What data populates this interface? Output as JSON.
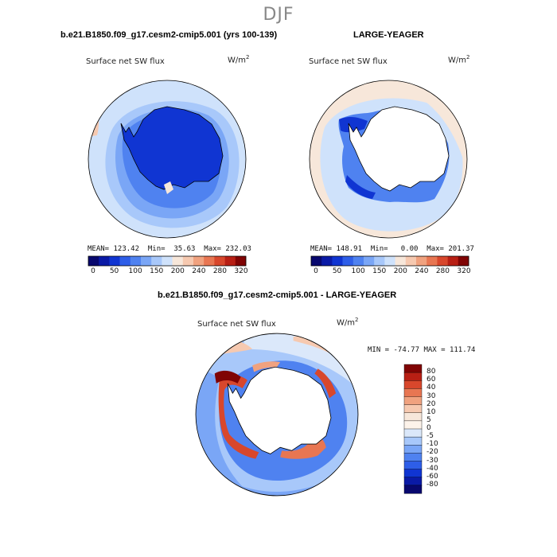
{
  "season": "DJF",
  "units_label": "W/m",
  "units_sup": "2",
  "chart_data": [
    {
      "type": "heatmap",
      "panel": "left",
      "title": "b.e21.B1850.f09_g17.cesm2-cmip5.001 (yrs 100-139)",
      "variable": "Surface net SW flux",
      "stats": "MEAN= 123.42  Min=  35.63  Max= 232.03",
      "mean": 123.42,
      "min": 35.63,
      "max": 232.03,
      "colorbar_ticks": [
        "0",
        "50",
        "100",
        "150",
        "200",
        "240",
        "280",
        "320"
      ],
      "colorbar_colors": [
        "#08086e",
        "#0a1aa6",
        "#1035d2",
        "#2e5ee8",
        "#4f82f0",
        "#7aa6f6",
        "#a8c8fa",
        "#cfe2fb",
        "#f7e7da",
        "#f6c9b0",
        "#f0a27f",
        "#e87652",
        "#d8472c",
        "#b81f14",
        "#800404"
      ]
    },
    {
      "type": "heatmap",
      "panel": "right",
      "title": "LARGE-YEAGER",
      "variable": "Surface net SW flux",
      "stats": "MEAN= 148.91  Min=   0.00  Max= 201.37",
      "mean": 148.91,
      "min": 0.0,
      "max": 201.37,
      "colorbar_ticks": [
        "0",
        "50",
        "100",
        "150",
        "200",
        "240",
        "280",
        "320"
      ],
      "colorbar_colors": [
        "#08086e",
        "#0a1aa6",
        "#1035d2",
        "#2e5ee8",
        "#4f82f0",
        "#7aa6f6",
        "#a8c8fa",
        "#cfe2fb",
        "#f7e7da",
        "#f6c9b0",
        "#f0a27f",
        "#e87652",
        "#d8472c",
        "#b81f14",
        "#800404"
      ]
    },
    {
      "type": "heatmap",
      "panel": "difference",
      "title": "b.e21.B1850.f09_g17.cesm2-cmip5.001 - LARGE-YEAGER",
      "variable": "Surface net SW flux",
      "stats": "MIN = -74.77 MAX = 111.74",
      "min": -74.77,
      "max": 111.74,
      "colorbar_ticks": [
        "80",
        "60",
        "40",
        "30",
        "20",
        "10",
        "5",
        "0",
        "-5",
        "-10",
        "-20",
        "-30",
        "-40",
        "-60",
        "-80"
      ],
      "colorbar_colors": [
        "#800404",
        "#b81f14",
        "#d8472c",
        "#e87652",
        "#f0a27f",
        "#f6c9b0",
        "#f7e7da",
        "#fdf3ea",
        "#dbe8fa",
        "#a8c8fa",
        "#7aa6f6",
        "#4f82f0",
        "#2e5ee8",
        "#1035d2",
        "#0a1aa6",
        "#08086e"
      ]
    }
  ]
}
